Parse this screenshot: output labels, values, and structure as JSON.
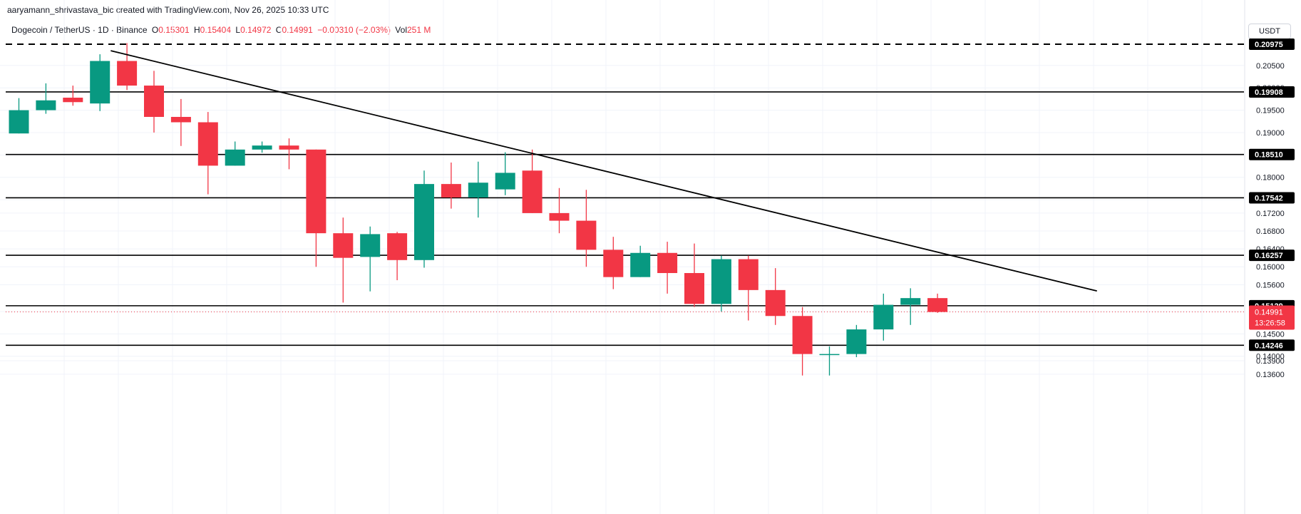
{
  "attribution": "aaryamann_shrivastava_bic created with TradingView.com, Nov 26, 2025 10:33 UTC",
  "legend": {
    "symbol": "Dogecoin / TetherUS · 1D · Binance",
    "open_label": "O",
    "open": "0.15301",
    "high_label": "H",
    "high": "0.15404",
    "low_label": "L",
    "low": "0.14972",
    "close_label": "C",
    "close": "0.14991",
    "change": "−0.00310 (−2.03%)",
    "vol_label": "Vol",
    "vol": "251 M"
  },
  "currency": "USDT",
  "colors": {
    "up": "#089981",
    "down": "#F23645",
    "line": "#000000",
    "grid": "#f0f3fa"
  },
  "chart_data": {
    "type": "candlestick",
    "title": "",
    "ylim": [
      0.1357,
      0.2151
    ],
    "y_ticks": [
      "0.20500",
      "0.20000",
      "0.19500",
      "0.19000",
      "0.18500",
      "0.18000",
      "0.17500",
      "0.17200",
      "0.16800",
      "0.16400",
      "0.16000",
      "0.15600",
      "0.15000",
      "0.14500",
      "0.14000",
      "0.13900",
      "0.13600"
    ],
    "candles": [
      {
        "o": 0.1898,
        "h": 0.1977,
        "l": 0.1898,
        "c": 0.195
      },
      {
        "o": 0.195,
        "h": 0.201,
        "l": 0.1942,
        "c": 0.1972
      },
      {
        "o": 0.1978,
        "h": 0.2005,
        "l": 0.196,
        "c": 0.1968
      },
      {
        "o": 0.1965,
        "h": 0.2075,
        "l": 0.1948,
        "c": 0.206
      },
      {
        "o": 0.206,
        "h": 0.21,
        "l": 0.1995,
        "c": 0.2005
      },
      {
        "o": 0.2005,
        "h": 0.2038,
        "l": 0.19,
        "c": 0.1935
      },
      {
        "o": 0.1935,
        "h": 0.1975,
        "l": 0.187,
        "c": 0.1923
      },
      {
        "o": 0.1923,
        "h": 0.1946,
        "l": 0.1762,
        "c": 0.1826
      },
      {
        "o": 0.1826,
        "h": 0.188,
        "l": 0.1826,
        "c": 0.1862
      },
      {
        "o": 0.1862,
        "h": 0.188,
        "l": 0.1855,
        "c": 0.1871
      },
      {
        "o": 0.1871,
        "h": 0.1887,
        "l": 0.1818,
        "c": 0.1862
      },
      {
        "o": 0.1862,
        "h": 0.1862,
        "l": 0.16,
        "c": 0.1675
      },
      {
        "o": 0.1675,
        "h": 0.171,
        "l": 0.152,
        "c": 0.162
      },
      {
        "o": 0.1622,
        "h": 0.169,
        "l": 0.1545,
        "c": 0.1673
      },
      {
        "o": 0.1675,
        "h": 0.1678,
        "l": 0.157,
        "c": 0.1615
      },
      {
        "o": 0.1615,
        "h": 0.1815,
        "l": 0.1598,
        "c": 0.1785
      },
      {
        "o": 0.1785,
        "h": 0.1833,
        "l": 0.173,
        "c": 0.1755
      },
      {
        "o": 0.1755,
        "h": 0.1835,
        "l": 0.171,
        "c": 0.1788
      },
      {
        "o": 0.1773,
        "h": 0.1856,
        "l": 0.176,
        "c": 0.181
      },
      {
        "o": 0.1815,
        "h": 0.1862,
        "l": 0.172,
        "c": 0.172
      },
      {
        "o": 0.172,
        "h": 0.1776,
        "l": 0.1675,
        "c": 0.1703
      },
      {
        "o": 0.1703,
        "h": 0.1772,
        "l": 0.16,
        "c": 0.1638
      },
      {
        "o": 0.1638,
        "h": 0.1667,
        "l": 0.155,
        "c": 0.1577
      },
      {
        "o": 0.1577,
        "h": 0.1647,
        "l": 0.1577,
        "c": 0.1631
      },
      {
        "o": 0.1631,
        "h": 0.1656,
        "l": 0.154,
        "c": 0.1586
      },
      {
        "o": 0.1586,
        "h": 0.1652,
        "l": 0.151,
        "c": 0.1517
      },
      {
        "o": 0.1517,
        "h": 0.1625,
        "l": 0.15,
        "c": 0.1617
      },
      {
        "o": 0.1617,
        "h": 0.1625,
        "l": 0.148,
        "c": 0.1548
      },
      {
        "o": 0.1548,
        "h": 0.1597,
        "l": 0.147,
        "c": 0.149
      },
      {
        "o": 0.149,
        "h": 0.151,
        "l": 0.1357,
        "c": 0.1405
      },
      {
        "o": 0.1405,
        "h": 0.1422,
        "l": 0.1357,
        "c": 0.1405
      },
      {
        "o": 0.1405,
        "h": 0.147,
        "l": 0.1398,
        "c": 0.146
      },
      {
        "o": 0.146,
        "h": 0.154,
        "l": 0.1435,
        "c": 0.1515
      },
      {
        "o": 0.1515,
        "h": 0.1552,
        "l": 0.147,
        "c": 0.153
      },
      {
        "o": 0.153,
        "h": 0.154,
        "l": 0.1497,
        "c": 0.1499
      }
    ],
    "levels": [
      {
        "value": 0.20975,
        "label": "0.20975",
        "style": "dashed"
      },
      {
        "value": 0.19908,
        "label": "0.19908",
        "style": "solid"
      },
      {
        "value": 0.1851,
        "label": "0.18510",
        "style": "solid"
      },
      {
        "value": 0.17542,
        "label": "0.17542",
        "style": "solid"
      },
      {
        "value": 0.16257,
        "label": "0.16257",
        "style": "solid"
      },
      {
        "value": 0.15129,
        "label": "0.15129",
        "style": "solid"
      },
      {
        "value": 0.14246,
        "label": "0.14246",
        "style": "solid"
      }
    ],
    "trendline": {
      "from": {
        "candle": 3.4,
        "price": 0.2083
      },
      "to": {
        "candle": 39.9,
        "price": 0.1546
      }
    },
    "current_price": {
      "value": 0.14991,
      "label": "0.14991",
      "countdown": "13:26:58"
    }
  }
}
